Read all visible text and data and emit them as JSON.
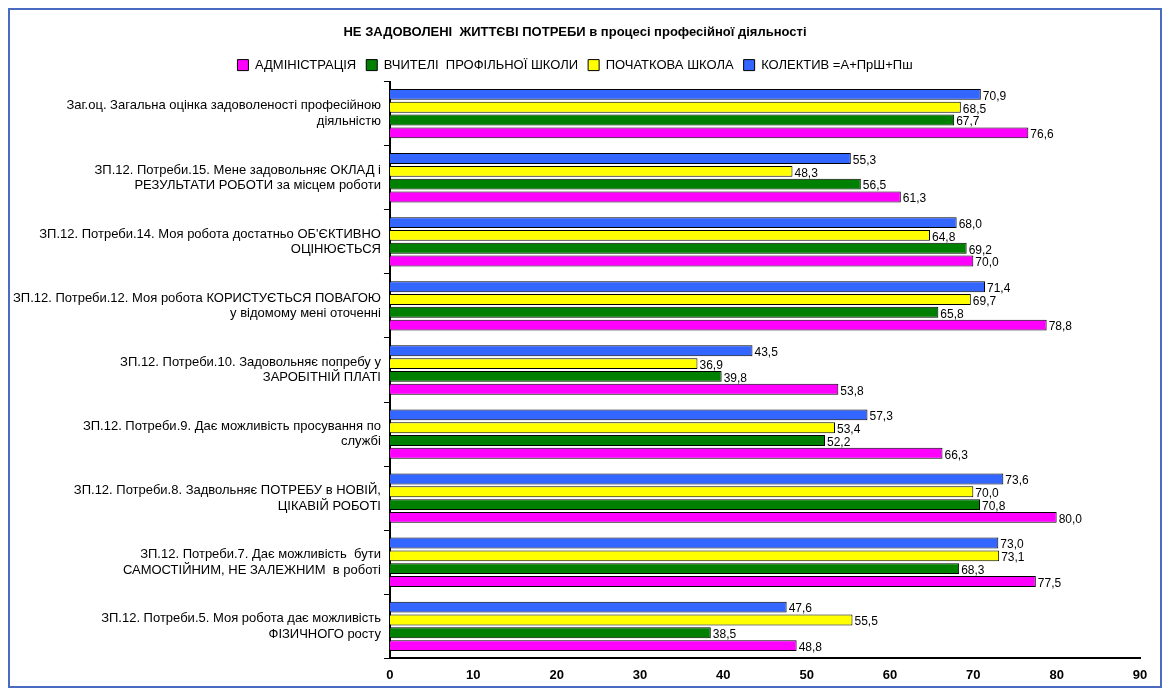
{
  "chart_data": {
    "type": "bar",
    "orientation": "horizontal",
    "title": "НЕ ЗАДОВОЛЕНІ  ЖИТТЄВІ ПОТРЕБИ в процесі професійної діяльності",
    "categories": [
      "Заг.оц. Загальна оцінка задоволеності професійною діяльністю",
      "ЗП.12. Потреби.15. Мене задовольняє ОКЛАД і РЕЗУЛЬТАТИ РОБОТИ за місцем роботи",
      "ЗП.12. Потреби.14. Моя робота достатньо ОБ'ЄКТИВНО ОЦІНЮЄТЬСЯ",
      "ЗП.12. Потреби.12. Моя робота КОРИСТУЄТЬСЯ ПОВАГОЮ у відомому мені оточенні",
      "ЗП.12. Потреби.10. Задовольняє попребу у ЗАРОБІТНІЙ ПЛАТІ",
      "ЗП.12. Потреби.9. Дає можливість просування по службі",
      "ЗП.12. Потреби.8. Задвольняє ПОТРЕБУ в НОВІЙ, ЦІКАВІЙ РОБОТІ",
      "ЗП.12. Потреби.7. Дає можливість  бути САМОСТІЙНИМ, НЕ ЗАЛЕЖНИМ  в роботі",
      "ЗП.12. Потреби.5. Моя робота дає можливість ФІЗИЧНОГО росту"
    ],
    "series": [
      {
        "name": "АДМІНІСТРАЦІЯ",
        "color": "#ff00ff",
        "values": [
          76.6,
          61.3,
          70.0,
          78.8,
          53.8,
          66.3,
          80.0,
          77.5,
          48.8
        ],
        "value_labels": [
          "76,6",
          "61,3",
          "70,0",
          "78,8",
          "53,8",
          "66,3",
          "80,0",
          "77,5",
          "48,8"
        ]
      },
      {
        "name": "ВЧИТЕЛІ  ПРОФІЛЬНОЇ ШКОЛИ",
        "color": "#008000",
        "values": [
          67.7,
          56.5,
          69.2,
          65.8,
          39.8,
          52.2,
          70.8,
          68.3,
          38.5
        ],
        "value_labels": [
          "67,7",
          "56,5",
          "69,2",
          "65,8",
          "39,8",
          "52,2",
          "70,8",
          "68,3",
          "38,5"
        ]
      },
      {
        "name": "ПОЧАТКОВА ШКОЛА",
        "color": "#ffff00",
        "values": [
          68.5,
          48.3,
          64.8,
          69.7,
          36.9,
          53.4,
          70.0,
          73.1,
          55.5
        ],
        "value_labels": [
          "68,5",
          "48,3",
          "64,8",
          "69,7",
          "36,9",
          "53,4",
          "70,0",
          "73,1",
          "55,5"
        ]
      },
      {
        "name": "КОЛЕКТИВ =А+ПрШ+Пш",
        "color": "#3366ff",
        "values": [
          70.9,
          55.3,
          68.0,
          71.4,
          43.5,
          57.3,
          73.6,
          73.0,
          47.6
        ],
        "value_labels": [
          "70,9",
          "55,3",
          "68,0",
          "71,4",
          "43,5",
          "57,3",
          "73,6",
          "73,0",
          "47,6"
        ]
      }
    ],
    "xlim": [
      0,
      90
    ],
    "xticks": [
      0,
      10,
      20,
      30,
      40,
      50,
      60,
      70,
      80,
      90
    ],
    "grid": false,
    "legend": "top"
  }
}
